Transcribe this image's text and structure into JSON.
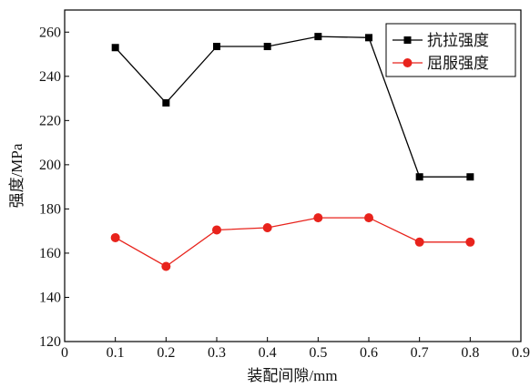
{
  "chart_data": {
    "type": "line",
    "xlabel": "装配间隙/mm",
    "ylabel": "强度/MPa",
    "xlim": [
      0,
      0.9
    ],
    "ylim": [
      120,
      270
    ],
    "x_ticks": [
      0,
      0.1,
      0.2,
      0.3,
      0.4,
      0.5,
      0.6,
      0.7,
      0.8,
      0.9
    ],
    "x_tick_labels": [
      "0",
      "0.1",
      "0.2",
      "0.3",
      "0.4",
      "0.5",
      "0.6",
      "0.7",
      "0.8",
      "0.9"
    ],
    "y_ticks": [
      120,
      140,
      160,
      180,
      200,
      220,
      240,
      260
    ],
    "y_tick_labels": [
      "120",
      "140",
      "160",
      "180",
      "200",
      "220",
      "240",
      "260"
    ],
    "grid": false,
    "legend_position": "top-right",
    "x": [
      0.1,
      0.2,
      0.3,
      0.4,
      0.5,
      0.6,
      0.7,
      0.8
    ],
    "series": [
      {
        "name": "抗拉强度",
        "color": "#000000",
        "marker": "square",
        "values": [
          253,
          228,
          253.5,
          253.5,
          258,
          257.5,
          194.5,
          194.5
        ]
      },
      {
        "name": "屈服强度",
        "color": "#e8231c",
        "marker": "circle",
        "values": [
          167,
          154,
          170.5,
          171.5,
          176,
          176,
          165,
          165
        ]
      }
    ]
  }
}
